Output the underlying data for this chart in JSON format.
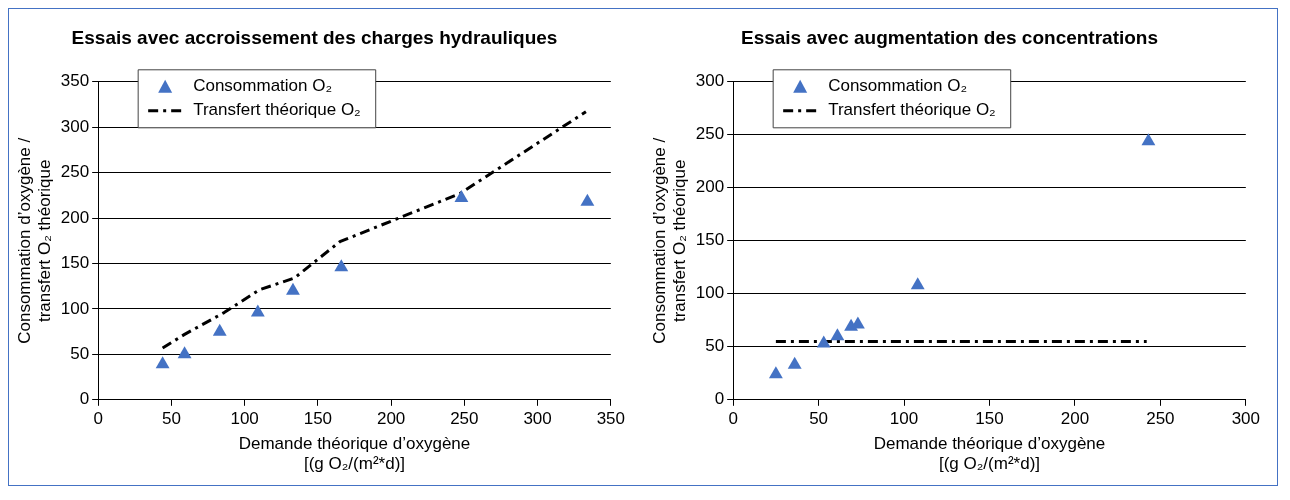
{
  "chart_data": [
    {
      "type": "scatter",
      "title": "Essais avec accroissement des charges hydrauliques",
      "xlabel": "Demande théorique d’oxygène\n[(g O₂/(m²*d)]",
      "ylabel": "Consommation d’oxygène /\ntransfert O₂ théorique",
      "xlim": [
        0,
        350
      ],
      "xticks": [
        0,
        50,
        100,
        150,
        200,
        250,
        300,
        350
      ],
      "ylim": [
        0,
        350
      ],
      "yticks": [
        0,
        50,
        100,
        150,
        200,
        250,
        300,
        350
      ],
      "grid": "y",
      "legend": "top left",
      "marker": "triangle",
      "series": [
        {
          "name": "Consommation O₂",
          "color": "#4472c4",
          "x": [
            44,
            59,
            83,
            109,
            133,
            166,
            248,
            334
          ],
          "values": [
            39,
            50,
            75,
            96,
            120,
            146,
            222,
            218
          ]
        },
        {
          "name": "Transfert théorique O₂",
          "type": "line",
          "color": "#000000",
          "marker": "none",
          "line_style": "dashed",
          "x": [
            44,
            59,
            86,
            110,
            134,
            165,
            247,
            333
          ],
          "values": [
            57,
            72,
            96,
            121,
            134,
            174,
            227,
            317
          ]
        }
      ]
    },
    {
      "type": "scatter",
      "title": "Essais avec augmentation des concentrations",
      "xlabel": "Demande théorique d’oxygène\n[(g O₂/(m²*d)]",
      "ylabel": "Consommation d’oxygène /\ntransfert O₂ théorique",
      "xlim": [
        0,
        300
      ],
      "xticks": [
        0,
        50,
        100,
        150,
        200,
        250,
        300
      ],
      "ylim": [
        0,
        300
      ],
      "yticks": [
        0,
        50,
        100,
        150,
        200,
        250,
        300
      ],
      "grid": "y",
      "legend": "top left",
      "marker": "triangle",
      "series": [
        {
          "name": "Consommation O₂",
          "color": "#4472c4",
          "x": [
            25,
            36,
            53,
            61,
            69,
            73,
            108,
            243
          ],
          "values": [
            24,
            33,
            53,
            60,
            69,
            71,
            108,
            244
          ]
        },
        {
          "name": "Transfert théorique O₂",
          "type": "line",
          "color": "#000000",
          "marker": "none",
          "line_style": "dashed",
          "x": [
            25,
            242
          ],
          "values": [
            55,
            55
          ]
        }
      ]
    }
  ]
}
